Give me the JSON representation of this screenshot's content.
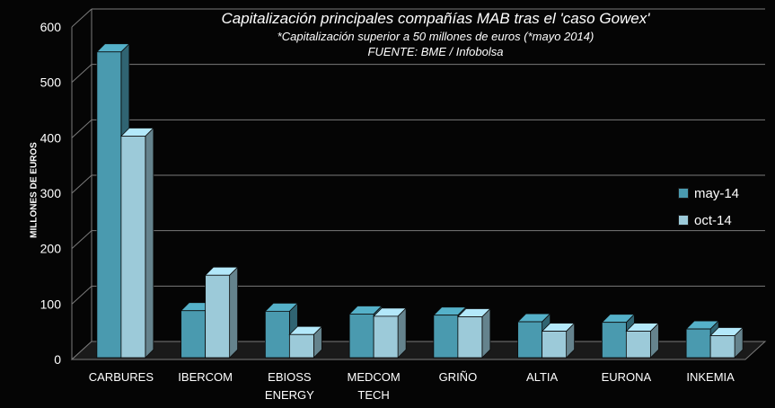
{
  "chart_data": {
    "type": "bar",
    "title": "Capitalización principales compañías MAB tras el 'caso Gowex'",
    "subtitle": "*Capitalización superior a 50 millones de euros (*mayo 2014)",
    "source": "FUENTE: BME / Infobolsa",
    "ylabel": "MILLONES DE EUROS",
    "xlabel": "",
    "ylim": [
      0,
      600
    ],
    "yticks": [
      0,
      100,
      200,
      300,
      400,
      500,
      600
    ],
    "categories": [
      [
        "CARBURES"
      ],
      [
        "IBERCOM"
      ],
      [
        "EBIOSS",
        "ENERGY"
      ],
      [
        "MEDCOM",
        "TECH"
      ],
      [
        "GRIÑO"
      ],
      [
        "ALTIA"
      ],
      [
        "EURONA"
      ],
      [
        "INKEMIA"
      ]
    ],
    "series": [
      {
        "name": "may-14",
        "color": "#4a9aaf",
        "values": [
          555,
          88,
          87,
          82,
          80,
          68,
          67,
          55
        ]
      },
      {
        "name": "oct-14",
        "color": "#9ccad9",
        "values": [
          403,
          152,
          45,
          78,
          77,
          51,
          51,
          43
        ]
      }
    ],
    "legend_position": "right",
    "grid": true
  }
}
